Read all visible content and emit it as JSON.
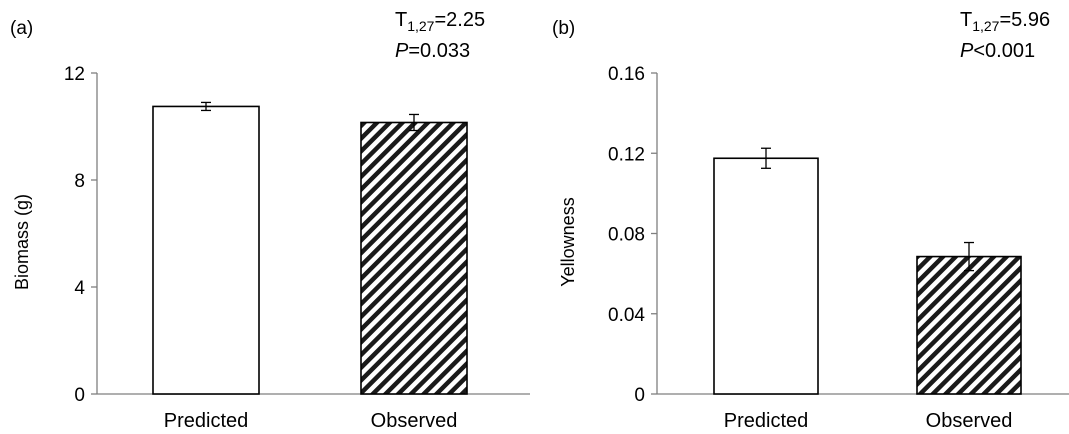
{
  "chart_data": [
    {
      "panel_label": "(a)",
      "type": "bar",
      "categories": [
        "Predicted",
        "Observed"
      ],
      "values": [
        10.75,
        10.15
      ],
      "errors": [
        0.15,
        0.3
      ],
      "patterns": [
        "none",
        "hatch"
      ],
      "ylabel": "Biomass (g)",
      "xlabel": "",
      "ylim": [
        0,
        12
      ],
      "yticks": [
        "0",
        "4",
        "8",
        "12"
      ],
      "stat_line1": {
        "base": "T",
        "sub": "1,27",
        "rest": "=2.25"
      },
      "stat_line2": {
        "italic": "P",
        "rest": "=0.033"
      },
      "grid": false,
      "legend": "none"
    },
    {
      "panel_label": "(b)",
      "type": "bar",
      "categories": [
        "Predicted",
        "Observed"
      ],
      "values": [
        0.1175,
        0.0685
      ],
      "errors": [
        0.005,
        0.007
      ],
      "patterns": [
        "none",
        "hatch"
      ],
      "ylabel": "Yellowness",
      "xlabel": "",
      "ylim": [
        0,
        0.16
      ],
      "yticks": [
        "0",
        "0.04",
        "0.08",
        "0.12",
        "0.16"
      ],
      "stat_line1": {
        "base": "T",
        "sub": "1,27",
        "rest": "=5.96"
      },
      "stat_line2": {
        "italic": "P",
        "rest": "<0.001"
      },
      "grid": false,
      "legend": "none"
    }
  ]
}
